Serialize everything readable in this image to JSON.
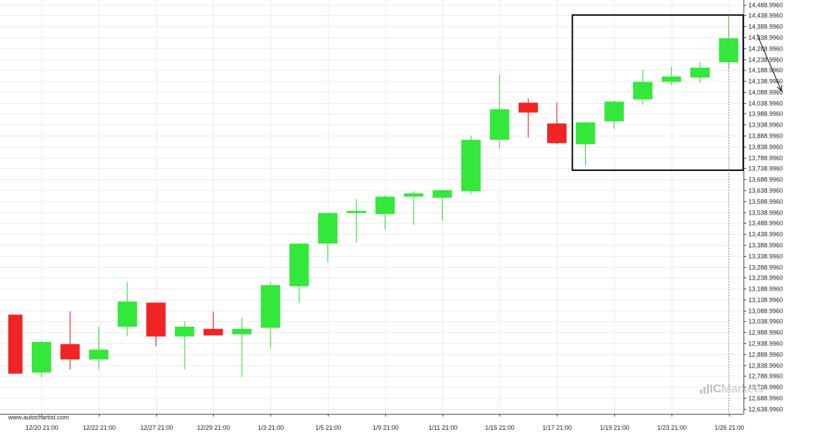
{
  "source_label": "www.autochartist.com",
  "watermark": {
    "prefix": "IC",
    "name": "Markets"
  },
  "colors": {
    "up": "#33e83a",
    "down": "#f02424",
    "grid": "#ebebeb",
    "axis_text": "#222222",
    "pattern_box": "#000000",
    "marker_line": "#999999"
  },
  "chart_data": {
    "type": "candlestick",
    "title": "",
    "xlabel": "",
    "ylabel": "",
    "ylim": [
      12616,
      14510
    ],
    "y_ticks": [
      "14,488.9960",
      "14,438.9960",
      "14,388.9960",
      "14,338.9960",
      "14,288.9960",
      "14,238.9960",
      "14,188.9960",
      "14,138.9960",
      "14,088.9960",
      "14,038.9960",
      "13,988.9960",
      "13,938.9960",
      "13,888.9960",
      "13,838.9960",
      "13,788.9960",
      "13,738.9960",
      "13,688.9960",
      "13,638.9960",
      "13,588.9960",
      "13,538.9960",
      "13,488.9960",
      "13,438.9960",
      "13,388.9960",
      "13,338.9960",
      "13,288.9960",
      "13,238.9960",
      "13,188.9960",
      "13,138.9960",
      "13,088.9960",
      "13,038.9960",
      "12,988.9960",
      "12,938.9960",
      "12,888.9960",
      "12,838.9960",
      "12,788.9960",
      "12,738.9960",
      "12,688.9960",
      "12,638.9960"
    ],
    "y_tick_values": [
      14488.996,
      14438.996,
      14388.996,
      14338.996,
      14288.996,
      14238.996,
      14188.996,
      14138.996,
      14088.996,
      14038.996,
      13988.996,
      13938.996,
      13888.996,
      13838.996,
      13788.996,
      13738.996,
      13688.996,
      13638.996,
      13588.996,
      13538.996,
      13488.996,
      13438.996,
      13388.996,
      13338.996,
      13288.996,
      13238.996,
      13188.996,
      13138.996,
      13088.996,
      13038.996,
      12988.996,
      12938.996,
      12888.996,
      12838.996,
      12788.996,
      12738.996,
      12688.996,
      12638.996
    ],
    "x_ticks": [
      {
        "label": "12/20 21:00",
        "index": 1
      },
      {
        "label": "12/22 21:00",
        "index": 3
      },
      {
        "label": "12/27 21:00",
        "index": 5
      },
      {
        "label": "12/29 21:00",
        "index": 7
      },
      {
        "label": "1/3 21:00",
        "index": 9
      },
      {
        "label": "1/5 21:00",
        "index": 11
      },
      {
        "label": "1/9 21:00",
        "index": 13
      },
      {
        "label": "1/11 21:00",
        "index": 15
      },
      {
        "label": "1/15 21:00",
        "index": 17
      },
      {
        "label": "1/17 21:00",
        "index": 19
      },
      {
        "label": "1/19 21:00",
        "index": 21
      },
      {
        "label": "1/23 21:00",
        "index": 23
      },
      {
        "label": "1/26 21:00",
        "index": 25
      }
    ],
    "candles": [
      {
        "o": 13070,
        "h": 13070,
        "l": 12800,
        "c": 12800
      },
      {
        "o": 12805,
        "h": 12950,
        "l": 12785,
        "c": 12945
      },
      {
        "o": 12935,
        "h": 13085,
        "l": 12820,
        "c": 12865
      },
      {
        "o": 12865,
        "h": 13015,
        "l": 12820,
        "c": 12910
      },
      {
        "o": 13015,
        "h": 13220,
        "l": 12970,
        "c": 13130
      },
      {
        "o": 13125,
        "h": 13125,
        "l": 12925,
        "c": 12970
      },
      {
        "o": 12970,
        "h": 13040,
        "l": 12820,
        "c": 13015
      },
      {
        "o": 13005,
        "h": 13085,
        "l": 12975,
        "c": 12975
      },
      {
        "o": 12980,
        "h": 13055,
        "l": 12785,
        "c": 13005
      },
      {
        "o": 13010,
        "h": 13220,
        "l": 12915,
        "c": 13205
      },
      {
        "o": 13200,
        "h": 13400,
        "l": 13125,
        "c": 13395
      },
      {
        "o": 13395,
        "h": 13535,
        "l": 13310,
        "c": 13535
      },
      {
        "o": 13535,
        "h": 13600,
        "l": 13400,
        "c": 13545
      },
      {
        "o": 13530,
        "h": 13615,
        "l": 13460,
        "c": 13610
      },
      {
        "o": 13610,
        "h": 13635,
        "l": 13480,
        "c": 13625
      },
      {
        "o": 13605,
        "h": 13640,
        "l": 13500,
        "c": 13640
      },
      {
        "o": 13635,
        "h": 13890,
        "l": 13620,
        "c": 13870
      },
      {
        "o": 13870,
        "h": 14170,
        "l": 13830,
        "c": 14010
      },
      {
        "o": 14040,
        "h": 14060,
        "l": 13880,
        "c": 13995
      },
      {
        "o": 13945,
        "h": 14040,
        "l": 13850,
        "c": 13855
      },
      {
        "o": 13850,
        "h": 13955,
        "l": 13750,
        "c": 13950
      },
      {
        "o": 13955,
        "h": 14050,
        "l": 13920,
        "c": 14045
      },
      {
        "o": 14055,
        "h": 14190,
        "l": 14030,
        "c": 14135
      },
      {
        "o": 14135,
        "h": 14205,
        "l": 14120,
        "c": 14160
      },
      {
        "o": 14155,
        "h": 14225,
        "l": 14130,
        "c": 14200
      },
      {
        "o": 14225,
        "h": 14435,
        "l": 14195,
        "c": 14335
      }
    ]
  }
}
